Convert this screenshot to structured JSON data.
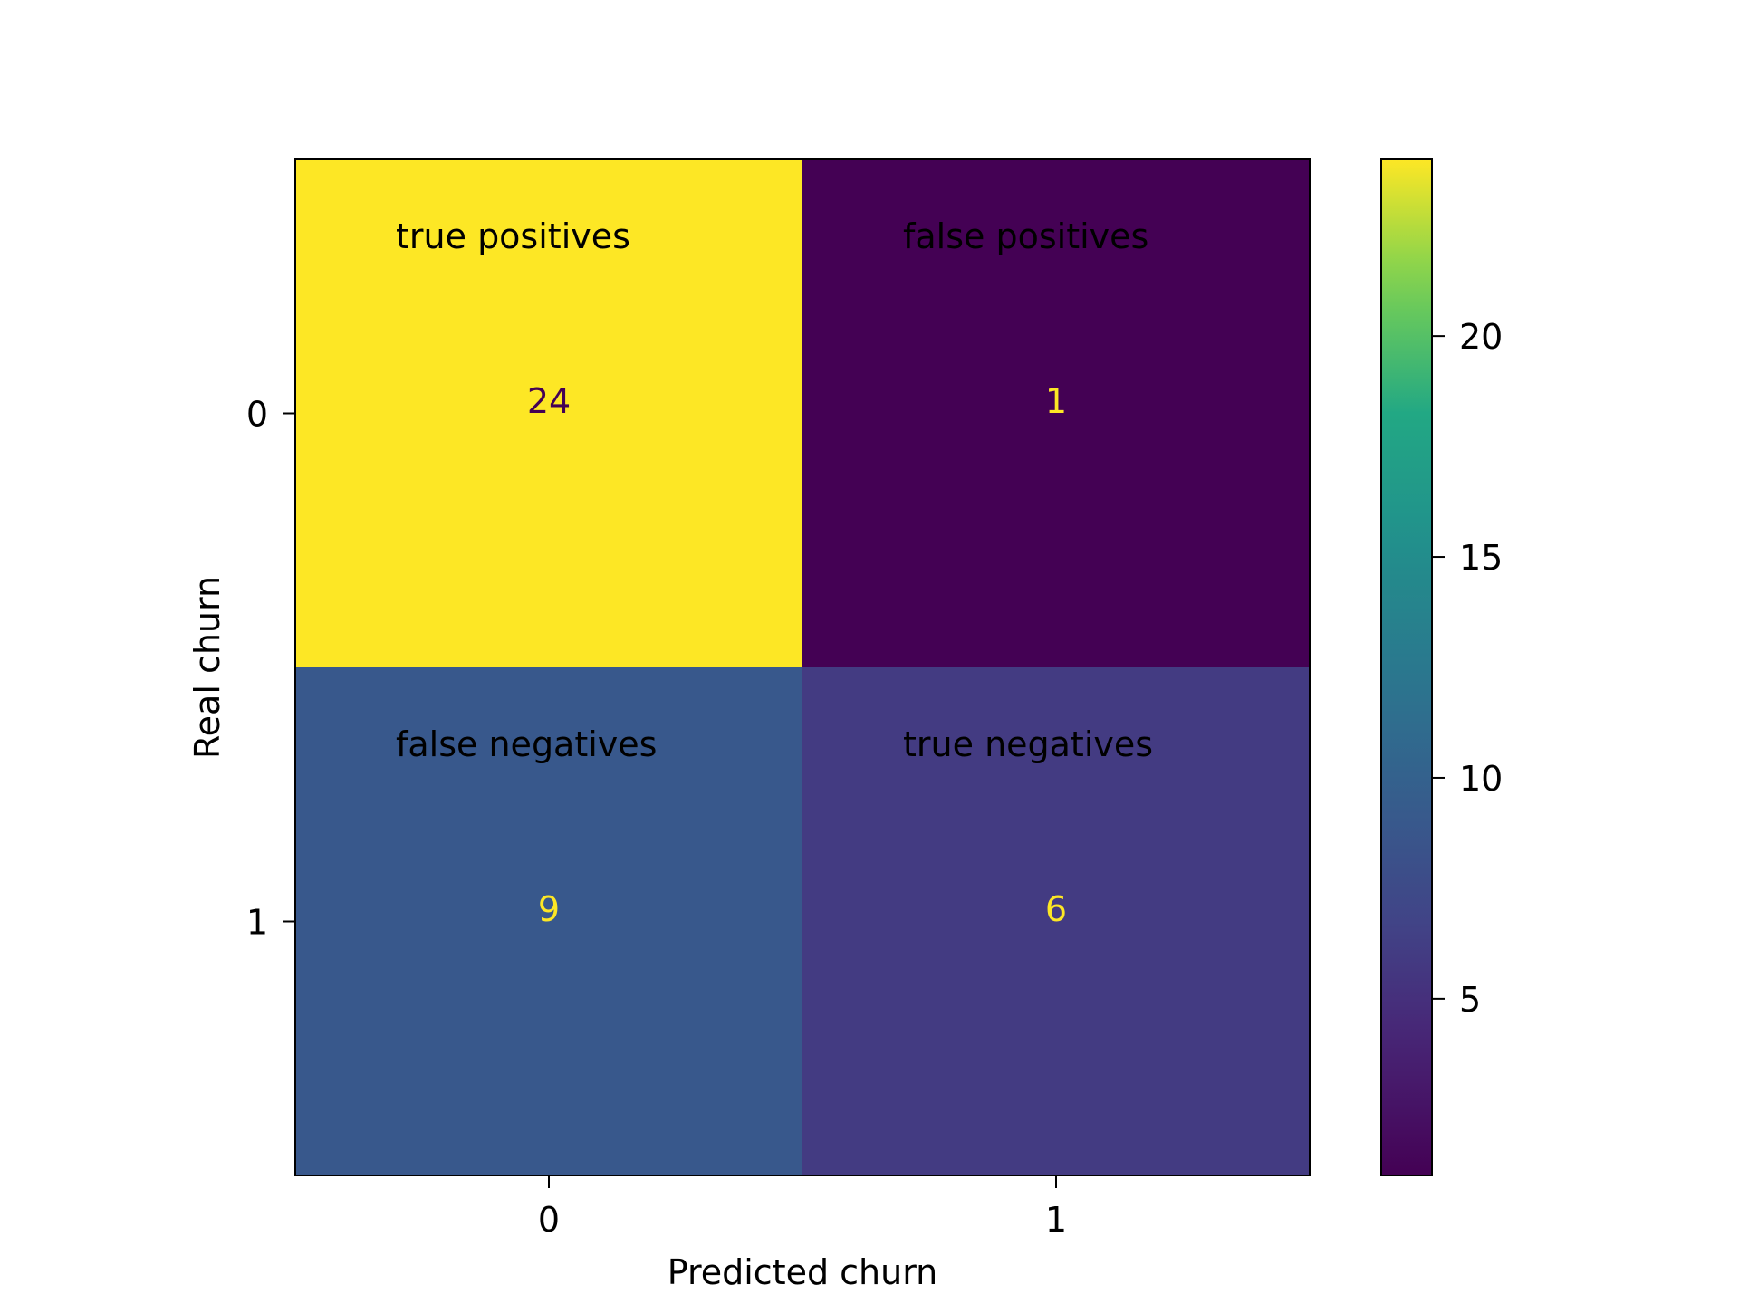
{
  "chart_data": {
    "type": "heatmap",
    "title": "",
    "xlabel": "Predicted churn",
    "ylabel": "Real churn",
    "x_ticks": [
      "0",
      "1"
    ],
    "y_ticks": [
      "0",
      "1"
    ],
    "matrix": [
      [
        24,
        1
      ],
      [
        9,
        6
      ]
    ],
    "cell_labels": [
      [
        "true positives",
        "false positives"
      ],
      [
        "false negatives",
        "true negatives"
      ]
    ],
    "value_text_colors": [
      [
        "#440154",
        "#fde725"
      ],
      [
        "#fde725",
        "#fde725"
      ]
    ],
    "colormap": "viridis",
    "colorbar": {
      "range": [
        1,
        24
      ],
      "ticks": [
        5,
        10,
        15,
        20
      ],
      "tick_labels": [
        "5",
        "10",
        "15",
        "20"
      ]
    },
    "grid": false
  }
}
